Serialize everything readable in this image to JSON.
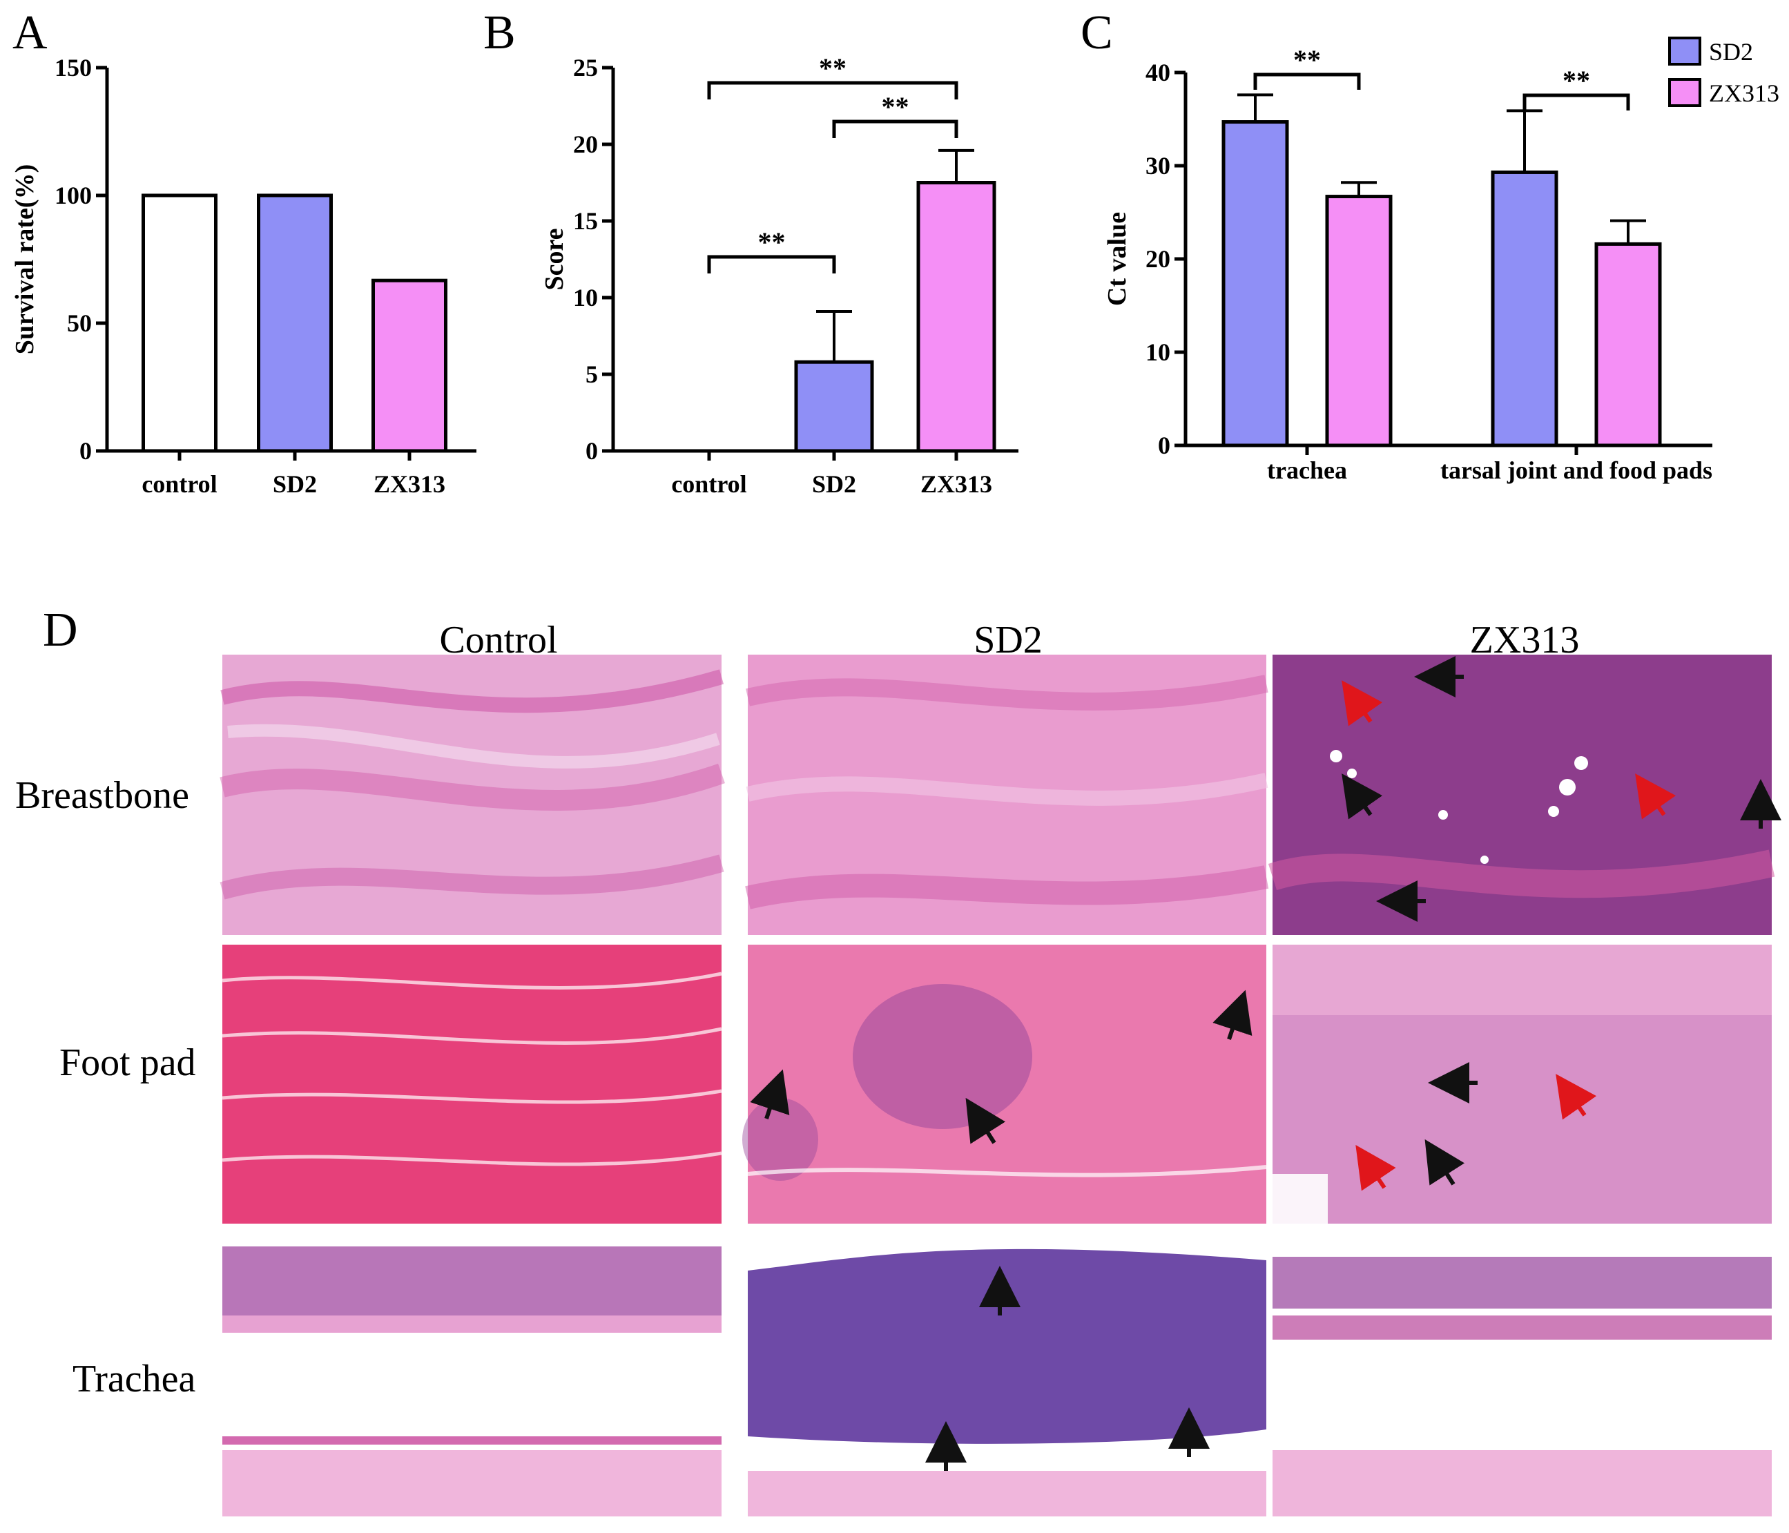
{
  "panel_letters": {
    "a": "A",
    "b": "B",
    "c": "C",
    "d": "D"
  },
  "chart_data": [
    {
      "id": "A",
      "type": "bar",
      "ylabel": "Survival rate(%)",
      "ylim": [
        0,
        150
      ],
      "yticks": [
        0,
        50,
        100,
        150
      ],
      "categories": [
        "control",
        "SD2",
        "ZX313"
      ],
      "values": [
        100,
        100,
        66.7
      ],
      "colors": [
        "#ffffff",
        "#8f8ff6",
        "#f58ff6"
      ]
    },
    {
      "id": "B",
      "type": "bar",
      "ylabel": "Score",
      "ylim": [
        0,
        25
      ],
      "yticks": [
        0,
        5,
        10,
        15,
        20,
        25
      ],
      "categories": [
        "control",
        "SD2",
        "ZX313"
      ],
      "values": [
        0,
        5.8,
        17.5
      ],
      "errors": [
        0,
        3.3,
        2.1
      ],
      "colors": [
        "#ffffff",
        "#8f8ff6",
        "#f58ff6"
      ],
      "significance": [
        {
          "from": 0,
          "to": 1,
          "label": "**"
        },
        {
          "from": 1,
          "to": 2,
          "label": "**"
        },
        {
          "from": 0,
          "to": 2,
          "label": "**"
        }
      ]
    },
    {
      "id": "C",
      "type": "bar",
      "ylabel": "Ct value",
      "ylim": [
        0,
        40
      ],
      "yticks": [
        0,
        10,
        20,
        30,
        40
      ],
      "categories": [
        "trachea",
        "tarsal joint and food pads"
      ],
      "series": [
        {
          "name": "SD2",
          "color": "#8f8ff6",
          "values": [
            34.7,
            29.3
          ],
          "errors": [
            2.9,
            6.6
          ]
        },
        {
          "name": "ZX313",
          "color": "#f58ff6",
          "values": [
            26.7,
            21.6
          ],
          "errors": [
            1.5,
            2.5
          ]
        }
      ],
      "significance": [
        {
          "category": 0,
          "label": "**"
        },
        {
          "category": 1,
          "label": "**"
        }
      ],
      "legend_position": "top-right"
    }
  ],
  "histology": {
    "columns": [
      "Control",
      "SD2",
      "ZX313"
    ],
    "rows": [
      "Breastbone",
      "Foot pad",
      "Trachea"
    ]
  }
}
